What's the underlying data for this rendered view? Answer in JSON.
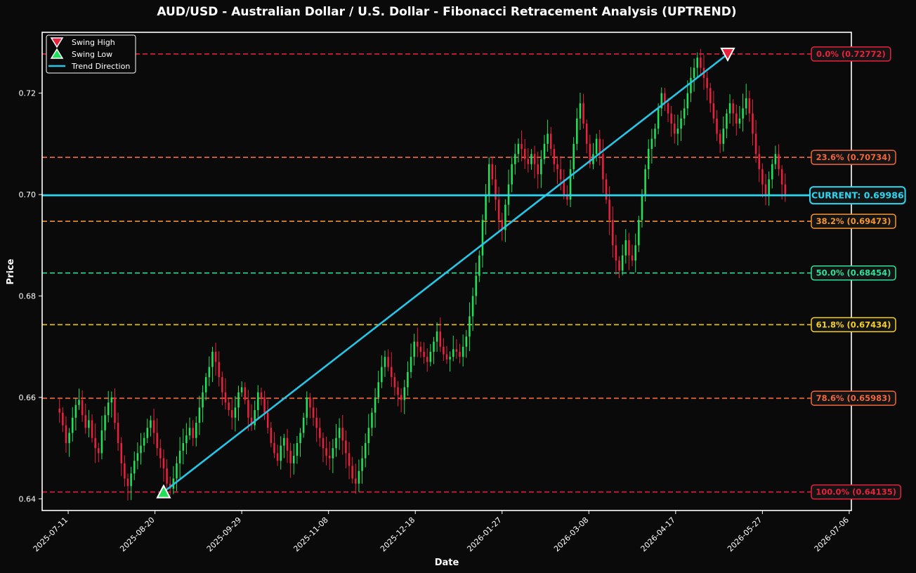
{
  "chart_data": {
    "type": "candlestick",
    "title": "AUD/USD - Australian Dollar / U.S. Dollar - Fibonacci Retracement Analysis (UPTREND)",
    "xlabel": "Date",
    "ylabel": "Price",
    "x_ticks": [
      "2025-07-11",
      "2025-08-20",
      "2025-09-29",
      "2025-11-08",
      "2025-12-18",
      "2026-01-27",
      "2026-03-08",
      "2026-04-17",
      "2026-05-27",
      "2026-07-06"
    ],
    "y_ticks": [
      "0.64",
      "0.66",
      "0.68",
      "0.70",
      "0.72"
    ],
    "xlim": [
      "2025-06-29",
      "2026-07-07"
    ],
    "ylim": [
      0.6377,
      0.732
    ],
    "legend": {
      "placement": "top-left",
      "entries": [
        {
          "label": "Swing High",
          "marker": "triangle-down",
          "color": "#e8213c"
        },
        {
          "label": "Swing Low",
          "marker": "triangle-up",
          "color": "#22e05a"
        },
        {
          "label": "Trend Direction",
          "marker": "line",
          "color": "#29c5e6"
        }
      ]
    },
    "swing_low": {
      "date": "2025-08-24",
      "price": 0.64135
    },
    "swing_high": {
      "date": "2026-05-11",
      "price": 0.72772
    },
    "current": {
      "label": "CURRENT: 0.69986",
      "price": 0.69986,
      "color": "#29d7f2"
    },
    "fib_levels": [
      {
        "label": "0.0% (0.72772)",
        "price": 0.72772,
        "color": "#e8213c"
      },
      {
        "label": "23.6% (0.70734)",
        "price": 0.70734,
        "color": "#f0663a"
      },
      {
        "label": "38.2% (0.69473)",
        "price": 0.69473,
        "color": "#f5952e"
      },
      {
        "label": "50.0% (0.68454)",
        "price": 0.68454,
        "color": "#2ee09a"
      },
      {
        "label": "61.8% (0.67434)",
        "price": 0.67434,
        "color": "#f5d020"
      },
      {
        "label": "78.6% (0.65983)",
        "price": 0.65983,
        "color": "#f0663a"
      },
      {
        "label": "100.0% (0.64135)",
        "price": 0.64135,
        "color": "#e8213c"
      }
    ],
    "candles": {
      "start_date": "2025-07-07",
      "step_days": 1.5,
      "up_color": "#22e05a",
      "down_color": "#e8213c",
      "close": [
        0.657,
        0.6545,
        0.651,
        0.653,
        0.656,
        0.6585,
        0.6595,
        0.6565,
        0.654,
        0.6555,
        0.652,
        0.65,
        0.649,
        0.6535,
        0.6565,
        0.659,
        0.66,
        0.655,
        0.651,
        0.647,
        0.644,
        0.6425,
        0.645,
        0.6475,
        0.649,
        0.6505,
        0.652,
        0.654,
        0.6555,
        0.653,
        0.65,
        0.648,
        0.646,
        0.643,
        0.642,
        0.644,
        0.647,
        0.6495,
        0.651,
        0.6525,
        0.654,
        0.652,
        0.655,
        0.658,
        0.661,
        0.664,
        0.666,
        0.669,
        0.667,
        0.664,
        0.661,
        0.659,
        0.6575,
        0.656,
        0.658,
        0.661,
        0.662,
        0.6595,
        0.656,
        0.6545,
        0.6575,
        0.661,
        0.66,
        0.657,
        0.654,
        0.651,
        0.649,
        0.6475,
        0.6505,
        0.652,
        0.6495,
        0.647,
        0.6485,
        0.651,
        0.653,
        0.656,
        0.66,
        0.658,
        0.656,
        0.654,
        0.652,
        0.65,
        0.6485,
        0.648,
        0.65,
        0.652,
        0.654,
        0.6515,
        0.649,
        0.6465,
        0.644,
        0.643,
        0.6455,
        0.648,
        0.651,
        0.654,
        0.657,
        0.66,
        0.663,
        0.666,
        0.668,
        0.666,
        0.664,
        0.662,
        0.6605,
        0.6595,
        0.662,
        0.665,
        0.668,
        0.671,
        0.67,
        0.669,
        0.668,
        0.667,
        0.669,
        0.671,
        0.673,
        0.67,
        0.6685,
        0.6675,
        0.668,
        0.6695,
        0.669,
        0.668,
        0.67,
        0.672,
        0.676,
        0.68,
        0.684,
        0.688,
        0.695,
        0.7,
        0.706,
        0.703,
        0.699,
        0.695,
        0.693,
        0.698,
        0.702,
        0.706,
        0.708,
        0.71,
        0.709,
        0.707,
        0.706,
        0.708,
        0.706,
        0.704,
        0.707,
        0.71,
        0.712,
        0.709,
        0.706,
        0.705,
        0.703,
        0.7,
        0.699,
        0.705,
        0.71,
        0.715,
        0.718,
        0.714,
        0.71,
        0.706,
        0.708,
        0.711,
        0.708,
        0.703,
        0.699,
        0.695,
        0.69,
        0.687,
        0.685,
        0.688,
        0.691,
        0.688,
        0.687,
        0.69,
        0.695,
        0.7,
        0.705,
        0.709,
        0.711,
        0.713,
        0.717,
        0.72,
        0.718,
        0.716,
        0.714,
        0.712,
        0.713,
        0.715,
        0.717,
        0.72,
        0.723,
        0.725,
        0.727,
        0.725,
        0.723,
        0.721,
        0.718,
        0.715,
        0.712,
        0.71,
        0.713,
        0.716,
        0.718,
        0.716,
        0.714,
        0.715,
        0.717,
        0.719,
        0.716,
        0.712,
        0.708,
        0.705,
        0.702,
        0.7,
        0.703,
        0.706,
        0.708,
        0.705,
        0.702,
        0.6999
      ]
    }
  }
}
